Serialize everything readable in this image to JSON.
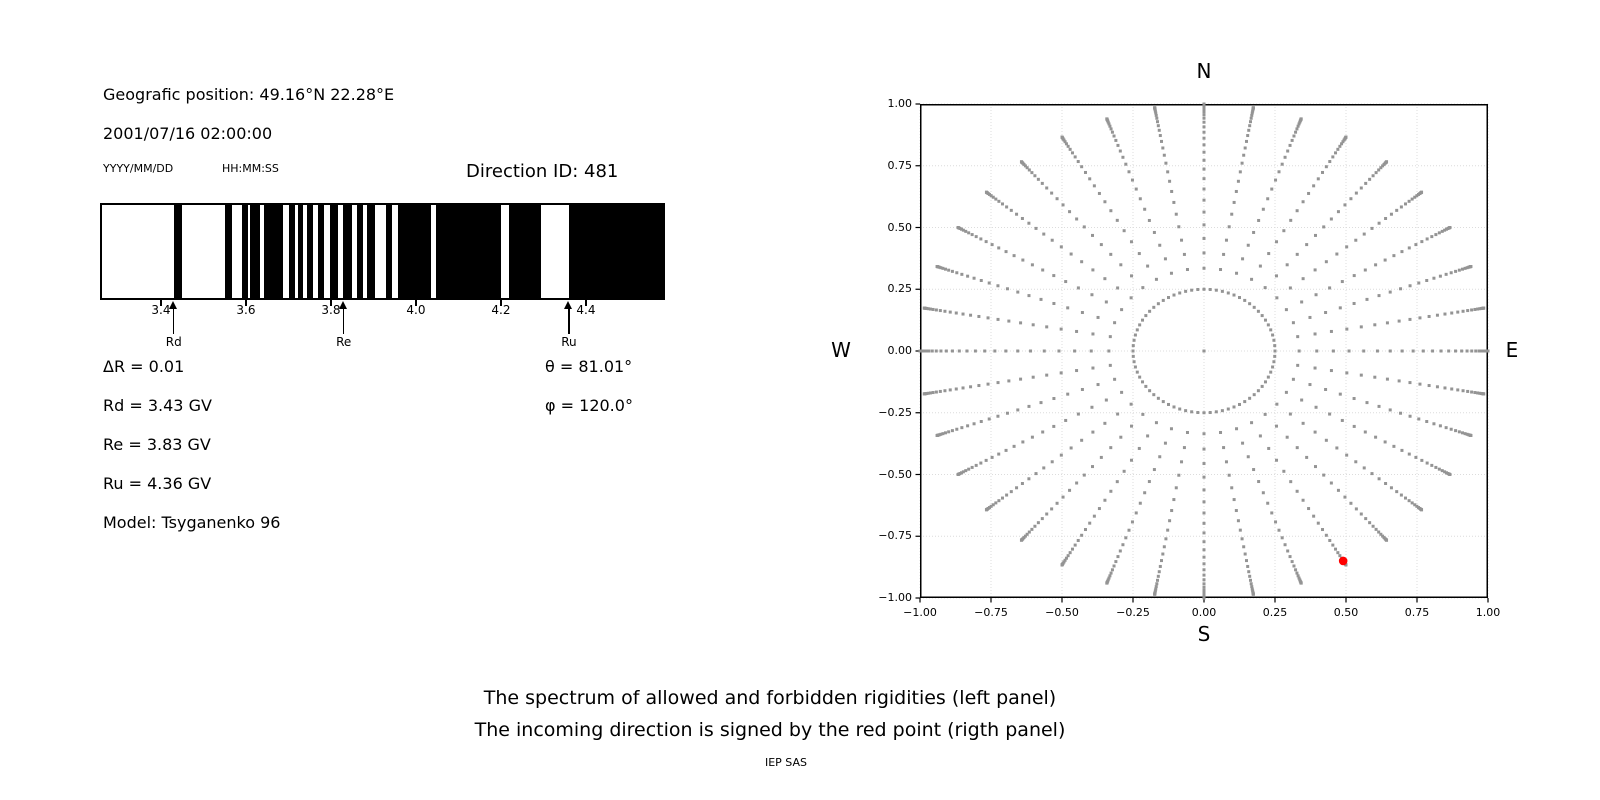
{
  "header": {
    "geographic_position": "Geografic position: 49.16°N 22.28°E",
    "datetime": "2001/07/16 02:00:00",
    "date_format_label": "YYYY/MM/DD",
    "time_format_label": "HH:MM:SS",
    "direction_id": "Direction ID: 481"
  },
  "info": {
    "delta_r": "ΔR = 0.01",
    "rd": "Rd = 3.43 GV",
    "re": "Re = 3.83 GV",
    "ru": "Ru = 4.36 GV",
    "model": "Model: Tsyganenko 96",
    "theta": "θ = 81.01°",
    "phi": "φ = 120.0°"
  },
  "captions": {
    "line1": "The spectrum of allowed and forbidden rigidities (left panel)",
    "line2": "The incoming direction is signed by the red point (rigth panel)",
    "credit": "IEP SAS"
  },
  "chart_data": [
    {
      "id": "rigidity-spectrum",
      "type": "barcode",
      "description": "Allowed (black) and forbidden (white) cosmic-ray rigidities",
      "xlim": [
        3.2565,
        4.586
      ],
      "x_ticks": [
        3.4,
        3.6,
        3.8,
        4.0,
        4.2,
        4.4
      ],
      "x_tick_labels": [
        "3.4",
        "3.6",
        "3.8",
        "4.0",
        "4.2",
        "4.4"
      ],
      "bin_width_gv": 0.01,
      "bar_color": "#000000",
      "allowed_intervals_gv": [
        [
          3.427,
          3.445
        ],
        [
          3.548,
          3.564
        ],
        [
          3.588,
          3.602
        ],
        [
          3.607,
          3.631
        ],
        [
          3.641,
          3.685
        ],
        [
          3.7,
          3.714
        ],
        [
          3.722,
          3.733
        ],
        [
          3.743,
          3.757
        ],
        [
          3.769,
          3.783
        ],
        [
          3.796,
          3.815
        ],
        [
          3.828,
          3.85
        ],
        [
          3.861,
          3.875
        ],
        [
          3.884,
          3.904
        ],
        [
          3.93,
          3.944
        ],
        [
          3.958,
          4.037
        ],
        [
          4.049,
          4.203
        ],
        [
          4.221,
          4.296
        ],
        [
          4.364,
          4.586
        ]
      ],
      "markers": [
        {
          "label": "Rd",
          "value_gv": 3.43
        },
        {
          "label": "Re",
          "value_gv": 3.83
        },
        {
          "label": "Ru",
          "value_gv": 4.36
        }
      ]
    },
    {
      "id": "incoming-direction",
      "type": "scatter",
      "xlim": [
        -1.0,
        1.0
      ],
      "ylim": [
        -1.0,
        1.0
      ],
      "x_ticks": [
        -1.0,
        -0.75,
        -0.5,
        -0.25,
        0.0,
        0.25,
        0.5,
        0.75,
        1.0
      ],
      "x_tick_labels": [
        "−1.00",
        "−0.75",
        "−0.50",
        "−0.25",
        "0.00",
        "0.25",
        "0.50",
        "0.75",
        "1.00"
      ],
      "y_ticks": [
        1.0,
        0.75,
        0.5,
        0.25,
        0.0,
        -0.25,
        -0.5,
        -0.75,
        -1.0
      ],
      "y_tick_labels": [
        "1.00",
        "0.75",
        "0.50",
        "0.25",
        "0.00",
        "−0.25",
        "−0.50",
        "−0.75",
        "−1.00"
      ],
      "cardinal_labels": {
        "top": "N",
        "bottom": "S",
        "left": "W",
        "right": "E"
      },
      "dot_color": "#949494",
      "grid_color": "#dcdcdc",
      "pattern": {
        "center_dot": [
          0,
          0
        ],
        "ring": {
          "radius": 0.25,
          "step_deg": 5
        },
        "spokes": {
          "step_deg": 10,
          "count": 36,
          "r_start": 0.335,
          "r_end": 1.0,
          "dots_per_spoke": 26,
          "taper_exponent": 2.4
        }
      },
      "red_point": {
        "x": 0.49,
        "y": -0.85,
        "color": "#ff0000"
      },
      "incoming_direction": {
        "direction_id": 481,
        "theta_deg": 81.01,
        "phi_deg": 120.0
      }
    }
  ]
}
